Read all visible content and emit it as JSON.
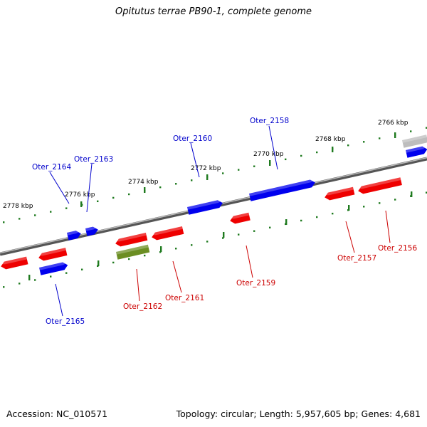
{
  "title": "Opitutus terrae PB90-1, complete genome",
  "footer": {
    "accession": "Accession: NC_010571",
    "summary": "Topology: circular; Length: 5,957,605 bp; Genes: 4,681"
  },
  "colors": {
    "backbone": "#7a7a7a",
    "ticks": "#1f7a1f",
    "forward": "#0000ee",
    "reverse": "#ee0000",
    "rna": "#6b8e23",
    "partial": "#bdbdbd",
    "label_forward": "#0000cc",
    "label_reverse": "#cc0000"
  },
  "scale_labels": [
    "2766 kbp",
    "2768 kbp",
    "2770 kbp",
    "2772 kbp",
    "2774 kbp",
    "2776 kbp",
    "2778 kbp"
  ],
  "genes": [
    {
      "name": "Oter_2156",
      "strand": "reverse",
      "type": "CDS"
    },
    {
      "name": "Oter_2157",
      "strand": "reverse",
      "type": "CDS"
    },
    {
      "name": "Oter_2158",
      "strand": "forward",
      "type": "CDS"
    },
    {
      "name": "Oter_2159",
      "strand": "reverse",
      "type": "CDS"
    },
    {
      "name": "Oter_2160",
      "strand": "forward",
      "type": "CDS"
    },
    {
      "name": "Oter_2161",
      "strand": "reverse",
      "type": "CDS"
    },
    {
      "name": "Oter_2162",
      "strand": "reverse",
      "type": "RNA"
    },
    {
      "name": "Oter_2163",
      "strand": "forward",
      "type": "CDS"
    },
    {
      "name": "Oter_2164",
      "strand": "forward",
      "type": "CDS"
    },
    {
      "name": "Oter_2165",
      "strand": "forward",
      "type": "CDS"
    }
  ]
}
